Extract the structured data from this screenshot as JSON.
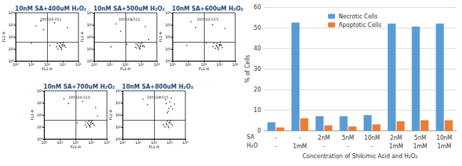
{
  "chart_data": [
    {
      "type": "scatter",
      "title": "10nM SA+400uM H₂O₂",
      "subtitle": "180524.011",
      "x_label": "FL1-H",
      "y_label": "FL2-H",
      "log": true,
      "color": "#000000",
      "xlim": [
        1,
        10000
      ],
      "ylim": [
        1,
        10000
      ],
      "xticks": [
        {
          "value": 1,
          "label": "10⁰"
        },
        {
          "value": 10,
          "label": "10¹"
        },
        {
          "value": 100,
          "label": "10²"
        },
        {
          "value": 1000,
          "label": "10³"
        },
        {
          "value": 10000,
          "label": "10⁴"
        }
      ],
      "yticks": [
        {
          "value": 1,
          "label": "10⁰"
        },
        {
          "value": 10,
          "label": "10¹"
        },
        {
          "value": 100,
          "label": "10²"
        },
        {
          "value": 1000,
          "label": "10³"
        },
        {
          "value": 10000,
          "label": "10⁴"
        }
      ],
      "quadrant": [
        100,
        40
      ],
      "x": [
        400,
        600,
        800,
        1000,
        1200,
        700,
        500,
        900,
        1500,
        650,
        1100,
        850,
        450,
        1300,
        750,
        950,
        20,
        40,
        60,
        300,
        2000,
        150,
        10
      ],
      "values": [
        15,
        20,
        12,
        25,
        18,
        30,
        10,
        22,
        14,
        16,
        35,
        9,
        28,
        20,
        13,
        17,
        800,
        2000,
        400,
        1500,
        600,
        20,
        30
      ]
    },
    {
      "type": "scatter",
      "title": "10nM SA+500uM H₂O₂",
      "subtitle": "180524.012",
      "x_label": "FL1-H",
      "y_label": "FL2-H",
      "log": true,
      "color": "#000000",
      "xlim": [
        1,
        10000
      ],
      "ylim": [
        1,
        10000
      ],
      "xticks": [
        {
          "value": 1,
          "label": "10⁰"
        },
        {
          "value": 10,
          "label": "10¹"
        },
        {
          "value": 100,
          "label": "10²"
        },
        {
          "value": 1000,
          "label": "10³"
        },
        {
          "value": 10000,
          "label": "10⁴"
        }
      ],
      "yticks": [
        {
          "value": 1,
          "label": "10⁰"
        },
        {
          "value": 10,
          "label": "10¹"
        },
        {
          "value": 100,
          "label": "10²"
        },
        {
          "value": 1000,
          "label": "10³"
        },
        {
          "value": 10000,
          "label": "10⁴"
        }
      ],
      "quadrant": [
        100,
        40
      ],
      "x": [
        420,
        580,
        820,
        980,
        1250,
        720,
        520,
        880,
        1600,
        630,
        1150,
        830,
        470,
        1350,
        760,
        930,
        25,
        50,
        250,
        1800,
        120,
        12,
        3000
      ],
      "values": [
        14,
        22,
        11,
        27,
        17,
        32,
        12,
        20,
        15,
        18,
        33,
        10,
        26,
        19,
        14,
        16,
        1200,
        300,
        2500,
        700,
        25,
        15,
        60
      ]
    },
    {
      "type": "scatter",
      "title": "10nM SA+600uM H₂O₂",
      "subtitle": "180524.013",
      "x_label": "FL1-H",
      "y_label": "FL2-H",
      "log": true,
      "color": "#000000",
      "xlim": [
        1,
        10000
      ],
      "ylim": [
        1,
        10000
      ],
      "xticks": [
        {
          "value": 1,
          "label": "10⁰"
        },
        {
          "value": 10,
          "label": "10¹"
        },
        {
          "value": 100,
          "label": "10²"
        },
        {
          "value": 1000,
          "label": "10³"
        },
        {
          "value": 10000,
          "label": "10⁴"
        }
      ],
      "yticks": [
        {
          "value": 1,
          "label": "10⁰"
        },
        {
          "value": 10,
          "label": "10¹"
        },
        {
          "value": 100,
          "label": "10²"
        },
        {
          "value": 1000,
          "label": "10³"
        },
        {
          "value": 10000,
          "label": "10⁴"
        }
      ],
      "quadrant": [
        100,
        40
      ],
      "x": [
        380,
        620,
        790,
        1050,
        1180,
        680,
        540,
        920,
        1450,
        670,
        1080,
        870,
        430,
        1280,
        740,
        960,
        30,
        15,
        350,
        2200,
        140,
        8
      ],
      "values": [
        16,
        19,
        13,
        24,
        20,
        28,
        11,
        23,
        13,
        17,
        36,
        9,
        30,
        21,
        12,
        18,
        600,
        1800,
        1000,
        500,
        30,
        20
      ]
    },
    {
      "type": "scatter",
      "title": "10nM SA+700uM H₂O₂",
      "subtitle": "180524.014",
      "x_label": "FL1-H",
      "y_label": "FL2-H",
      "log": true,
      "color": "#000000",
      "xlim": [
        1,
        10000
      ],
      "ylim": [
        1,
        10000
      ],
      "xticks": [
        {
          "value": 1,
          "label": "10⁰"
        },
        {
          "value": 10,
          "label": "10¹"
        },
        {
          "value": 100,
          "label": "10²"
        },
        {
          "value": 1000,
          "label": "10³"
        },
        {
          "value": 10000,
          "label": "10⁴"
        }
      ],
      "yticks": [
        {
          "value": 1,
          "label": "10⁰"
        },
        {
          "value": 10,
          "label": "10¹"
        },
        {
          "value": 100,
          "label": "10²"
        },
        {
          "value": 1000,
          "label": "10³"
        },
        {
          "value": 10000,
          "label": "10⁴"
        }
      ],
      "quadrant": [
        100,
        40
      ],
      "x": [
        410,
        590,
        810,
        1020,
        1220,
        710,
        510,
        910,
        1550,
        660,
        1120,
        840,
        460,
        1320,
        770,
        940,
        35,
        18,
        280,
        1900,
        130,
        2500
      ],
      "values": [
        15,
        21,
        12,
        26,
        19,
        31,
        10,
        22,
        14,
        16,
        34,
        10,
        27,
        20,
        13,
        17,
        900,
        2200,
        1300,
        400,
        22,
        80
      ]
    },
    {
      "type": "scatter",
      "title": "10nM SA+800uM H₂O₂",
      "subtitle": "180524.015",
      "x_label": "FL1-H",
      "y_label": "FL2-H",
      "log": true,
      "color": "#000000",
      "xlim": [
        1,
        10000
      ],
      "ylim": [
        1,
        10000
      ],
      "xticks": [
        {
          "value": 1,
          "label": "10⁰"
        },
        {
          "value": 10,
          "label": "10¹"
        },
        {
          "value": 100,
          "label": "10²"
        },
        {
          "value": 1000,
          "label": "10³"
        },
        {
          "value": 10000,
          "label": "10⁴"
        }
      ],
      "yticks": [
        {
          "value": 1,
          "label": "10⁰"
        },
        {
          "value": 10,
          "label": "10¹"
        },
        {
          "value": 100,
          "label": "10²"
        },
        {
          "value": 1000,
          "label": "10³"
        },
        {
          "value": 10000,
          "label": "10⁴"
        }
      ],
      "quadrant": [
        100,
        40
      ],
      "x": [
        400,
        600,
        800,
        1000,
        1200,
        700,
        500,
        900,
        1500,
        650,
        1100,
        850,
        800,
        1200,
        600,
        1500,
        1000,
        700,
        2000,
        900,
        1300,
        550,
        40,
        20,
        250
      ],
      "values": [
        15,
        20,
        12,
        25,
        18,
        30,
        10,
        22,
        14,
        16,
        35,
        9,
        200,
        500,
        900,
        300,
        1200,
        150,
        800,
        350,
        2500,
        1800,
        700,
        2000,
        3000
      ]
    },
    {
      "type": "bar",
      "y_label": "% of Cells",
      "x_label": "Concentration of Shikimic Acid and H₂O₂",
      "table_rows": [
        {
          "label": "SA",
          "cells": [
            "-",
            "-",
            "2nM",
            "5nM",
            "10nM",
            "2nM",
            "5nM",
            "10nM"
          ]
        },
        {
          "label": "H₂O",
          "cells": [
            "-",
            "1mM",
            "-",
            "-",
            "-",
            "1mM",
            "1mM",
            "1mM"
          ]
        }
      ],
      "series": [
        {
          "name": "Necrotic Cells",
          "color": "#5b9bd5",
          "values": [
            4,
            52.5,
            7,
            7,
            7.5,
            52,
            50.5,
            52
          ]
        },
        {
          "name": "Apoptotic Cells",
          "color": "#ed7d31",
          "values": [
            1.5,
            6,
            2.5,
            2,
            3,
            4.5,
            5,
            5
          ]
        }
      ],
      "ylim": [
        0,
        60
      ],
      "yticks": [
        0,
        10,
        20,
        30,
        40,
        50,
        60
      ],
      "grid": true,
      "legend": "top"
    }
  ]
}
